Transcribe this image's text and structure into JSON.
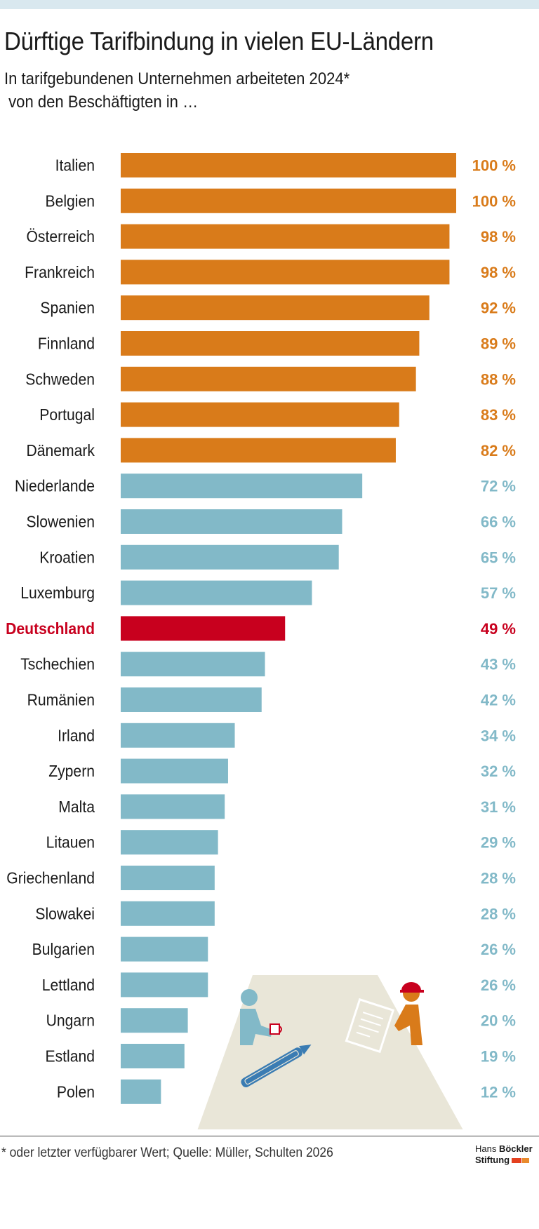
{
  "title": "Dürftige Tarifbindung in vielen EU-Ländern",
  "subtitle": "In tarifgebundenen Unternehmen arbeiteten 2024*\n von den Beschäftigten in …",
  "footnote": "* oder letzter verfügbarer Wert; Quelle: Müller, Schulten 2026",
  "logo": {
    "line1_a": "Hans ",
    "line1_b": "Böckler",
    "line2": "Stiftung"
  },
  "colors": {
    "high": "#d97b1a",
    "low": "#82b9c8",
    "highlight": "#c8001e",
    "illustration_bg": "#e9e6d8",
    "pen": "#3a7cb3",
    "logo_red": "#e4401f",
    "logo_orange": "#e98b2d"
  },
  "illustration": {
    "description_icons": [
      "worker-with-cup-icon",
      "pen-icon",
      "document-icon",
      "worker-with-cap-icon"
    ]
  },
  "chart_data": {
    "type": "bar",
    "orientation": "horizontal",
    "value_suffix": " %",
    "xlim": [
      0,
      100
    ],
    "highlight": "Deutschland",
    "categories": [
      "Italien",
      "Belgien",
      "Österreich",
      "Frankreich",
      "Spanien",
      "Finnland",
      "Schweden",
      "Portugal",
      "Dänemark",
      "Niederlande",
      "Slowenien",
      "Kroatien",
      "Luxemburg",
      "Deutschland",
      "Tschechien",
      "Rumänien",
      "Irland",
      "Zypern",
      "Malta",
      "Litauen",
      "Griechenland",
      "Slowakei",
      "Bulgarien",
      "Lettland",
      "Ungarn",
      "Estland",
      "Polen"
    ],
    "values": [
      100,
      100,
      98,
      98,
      92,
      89,
      88,
      83,
      82,
      72,
      66,
      65,
      57,
      49,
      43,
      42,
      34,
      32,
      31,
      29,
      28,
      28,
      26,
      26,
      20,
      19,
      12
    ],
    "groups": [
      "high",
      "high",
      "high",
      "high",
      "high",
      "high",
      "high",
      "high",
      "high",
      "low",
      "low",
      "low",
      "low",
      "highlight",
      "low",
      "low",
      "low",
      "low",
      "low",
      "low",
      "low",
      "low",
      "low",
      "low",
      "low",
      "low",
      "low"
    ]
  }
}
